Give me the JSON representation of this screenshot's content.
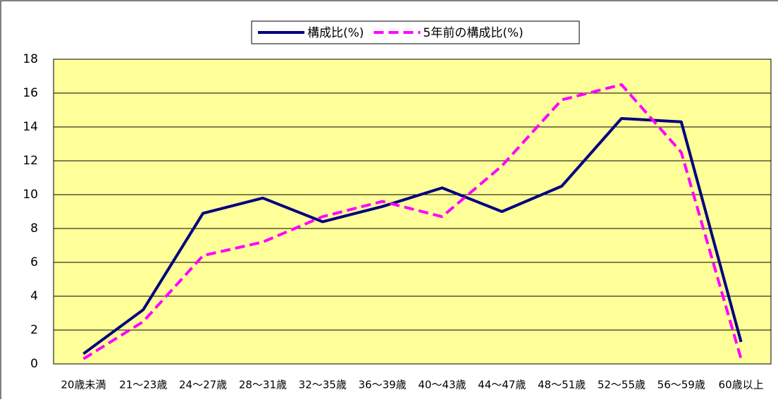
{
  "chart_data": {
    "type": "line",
    "categories": [
      "20歳未満",
      "21～23歳",
      "24～27歳",
      "28～31歳",
      "32～35歳",
      "36～39歳",
      "40～43歳",
      "44～47歳",
      "48～51歳",
      "52～55歳",
      "56～59歳",
      "60歳以上"
    ],
    "series": [
      {
        "name": "構成比(%)",
        "color": "#000080",
        "dash": false,
        "values": [
          0.6,
          3.2,
          8.9,
          9.8,
          8.4,
          9.3,
          10.4,
          9.0,
          10.5,
          14.5,
          14.3,
          1.3
        ]
      },
      {
        "name": "5年前の構成比(%)",
        "color": "#ff00ff",
        "dash": true,
        "values": [
          0.3,
          2.5,
          6.4,
          7.2,
          8.7,
          9.6,
          8.7,
          11.7,
          15.6,
          16.5,
          12.5,
          0.3
        ]
      }
    ],
    "ylim": [
      0,
      18
    ],
    "yticks": [
      0,
      2,
      4,
      6,
      8,
      10,
      12,
      14,
      16,
      18
    ],
    "grid": true,
    "plot_background": "#ffff99",
    "legend": "top"
  }
}
